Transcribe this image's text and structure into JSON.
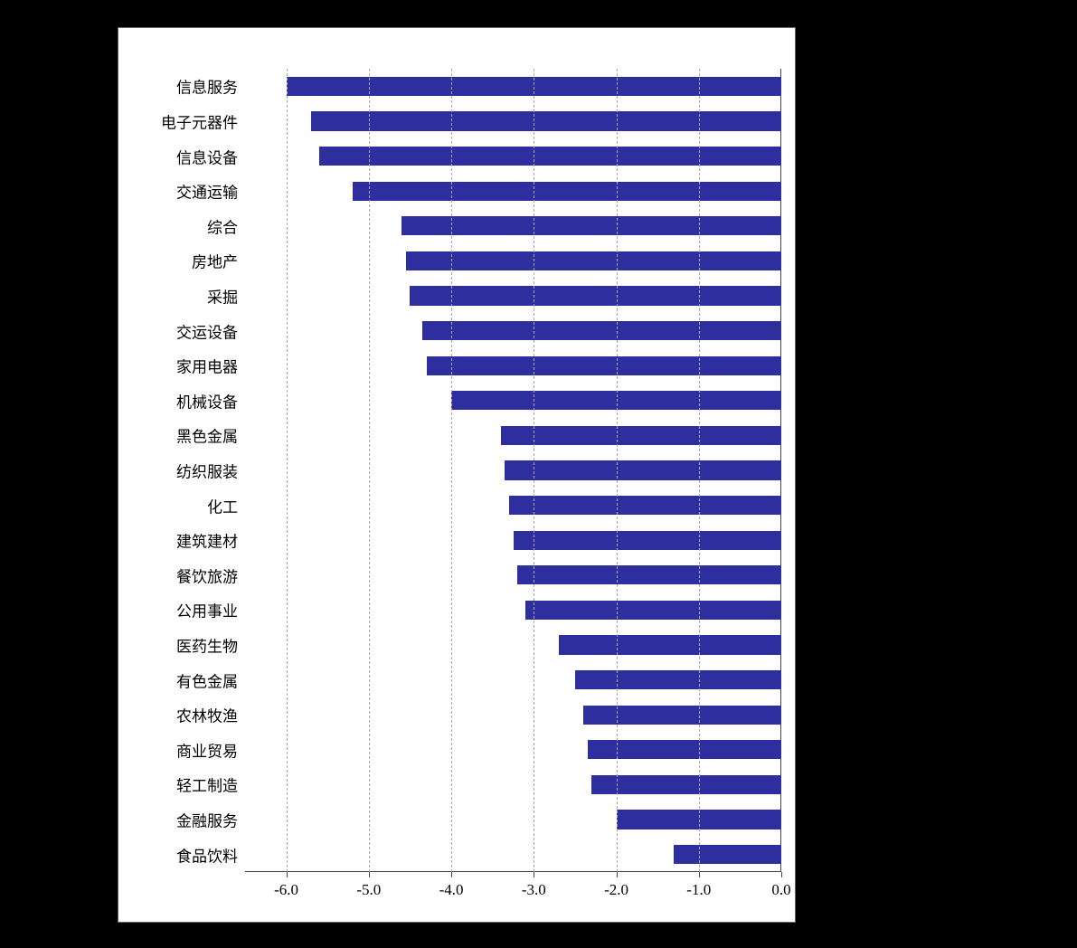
{
  "chart": {
    "type": "bar-horizontal",
    "background_color": "#ffffff",
    "page_background": "#000000",
    "bar_color": "#2e2e9e",
    "grid_color": "#aaaaaa",
    "axis_color": "#444444",
    "label_color": "#000000",
    "label_fontsize": 17,
    "tick_fontsize": 17,
    "xlim_min": -6.5,
    "xlim_max": 0.0,
    "xtick_step": 1.0,
    "xticks": [
      "-6.0",
      "-5.0",
      "-4.0",
      "-3.0",
      "-2.0",
      "-1.0",
      "0.0"
    ],
    "xtick_values": [
      -6.0,
      -5.0,
      -4.0,
      -3.0,
      -2.0,
      -1.0,
      0.0
    ],
    "bar_width_ratio": 0.55,
    "categories": [
      "信息服务",
      "电子元器件",
      "信息设备",
      "交通运输",
      "综合",
      "房地产",
      "采掘",
      "交运设备",
      "家用电器",
      "机械设备",
      "黑色金属",
      "纺织服装",
      "化工",
      "建筑建材",
      "餐饮旅游",
      "公用事业",
      "医药生物",
      "有色金属",
      "农林牧渔",
      "商业贸易",
      "轻工制造",
      "金融服务",
      "食品饮料"
    ],
    "values": [
      -6.0,
      -5.7,
      -5.6,
      -5.2,
      -4.6,
      -4.55,
      -4.5,
      -4.35,
      -4.3,
      -4.0,
      -3.4,
      -3.35,
      -3.3,
      -3.25,
      -3.2,
      -3.1,
      -2.7,
      -2.5,
      -2.4,
      -2.35,
      -2.3,
      -2.0,
      -1.3
    ]
  }
}
